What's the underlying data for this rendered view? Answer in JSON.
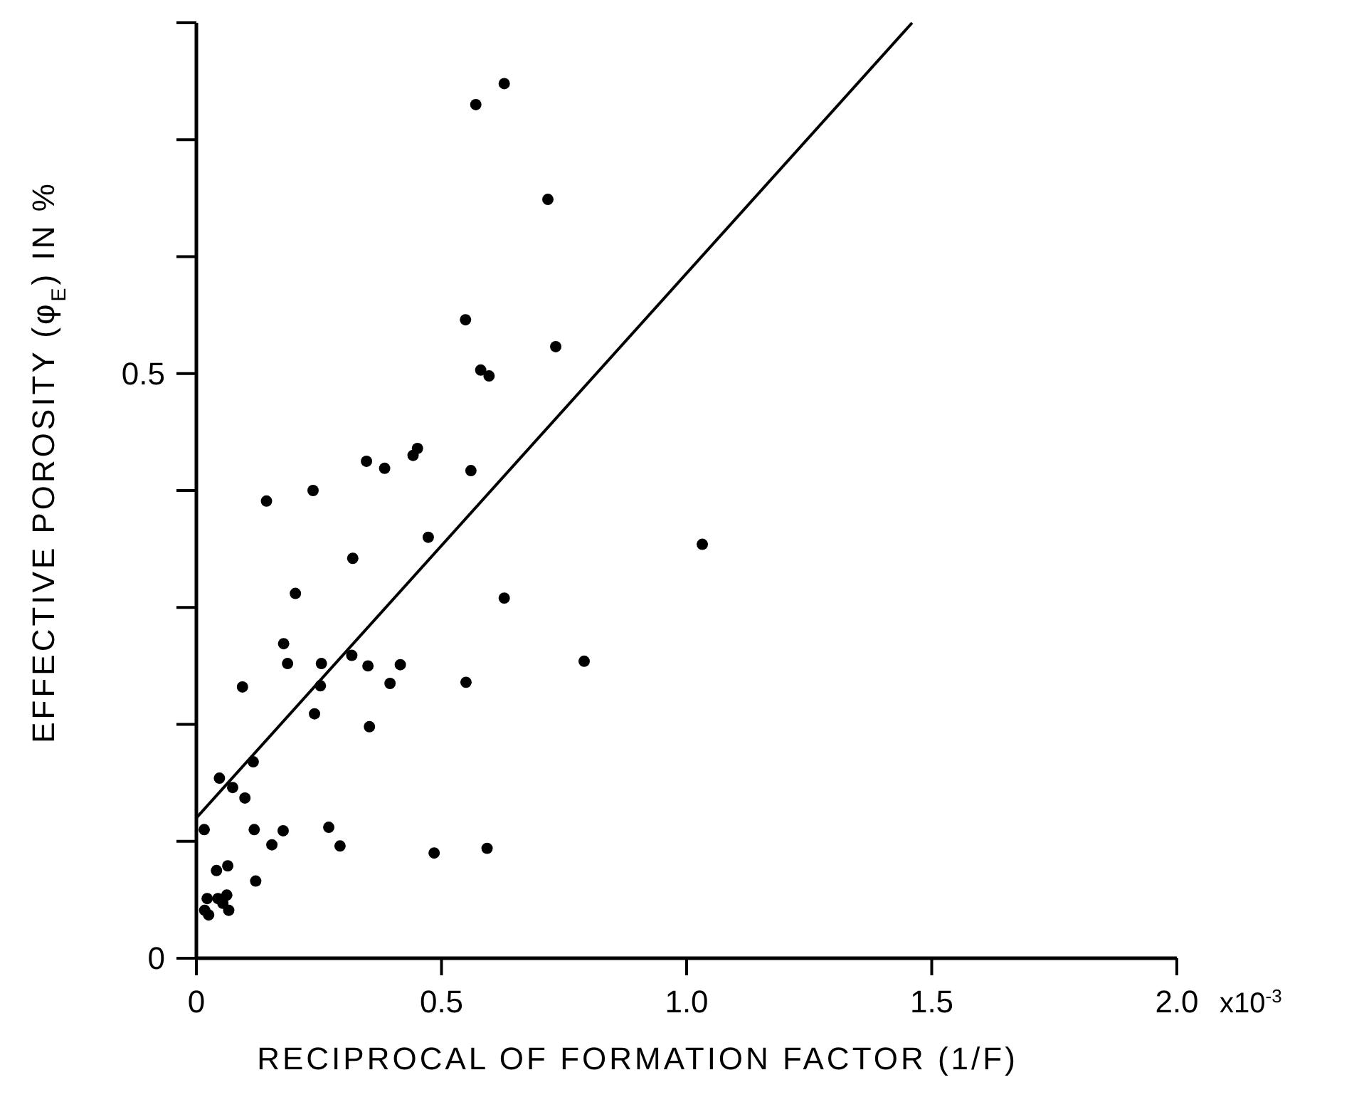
{
  "chart_data": {
    "type": "scatter",
    "xlabel": "RECIPROCAL OF FORMATION FACTOR (1/F)",
    "ylabel": "EFFECTIVE POROSITY (φ$_{E}$) IN %",
    "xlim": [
      0,
      2.0
    ],
    "ylim": [
      0,
      0.8
    ],
    "xticks": [
      0,
      0.5,
      {
        "value": 1,
        "label": "1.0"
      },
      1.5,
      {
        "value": 2,
        "label": "2.0"
      }
    ],
    "yticks": [
      0,
      {
        "value": 0.1,
        "label": null
      },
      {
        "value": 0.2,
        "label": null
      },
      {
        "value": 0.3,
        "label": null
      },
      {
        "value": 0.4,
        "label": null
      },
      0.5,
      {
        "value": 0.6,
        "label": null
      },
      {
        "value": 0.7,
        "label": null
      },
      {
        "value": 0.8,
        "label": null
      }
    ],
    "annotations": [
      "x10$^{-3}$"
    ],
    "grid": false,
    "marker": "circle",
    "series": [
      {
        "color": "#000000",
        "x": [
          0.628,
          0.57,
          0.717,
          0.549,
          0.733,
          0.58,
          0.597,
          0.451,
          0.442,
          0.347,
          0.384,
          0.56,
          0.238,
          0.143,
          0.473,
          0.319,
          0.628,
          0.202,
          0.178,
          0.186,
          0.255,
          0.317,
          0.35,
          0.416,
          0.791,
          0.094,
          0.253,
          0.395,
          0.55,
          0.241,
          0.353,
          0.116,
          0.047,
          0.074,
          0.099,
          0.016,
          0.118,
          0.177,
          0.27,
          0.154,
          0.293,
          0.485,
          0.593,
          0.041,
          0.064,
          0.121,
          0.022,
          0.044,
          0.062,
          0.017,
          0.025,
          0.066,
          0.054,
          1.032
        ],
        "values": [
          0.748,
          0.73,
          0.649,
          0.546,
          0.523,
          0.503,
          0.498,
          0.436,
          0.43,
          0.425,
          0.419,
          0.417,
          0.4,
          0.391,
          0.36,
          0.342,
          0.308,
          0.312,
          0.269,
          0.252,
          0.252,
          0.259,
          0.25,
          0.251,
          0.254,
          0.232,
          0.233,
          0.235,
          0.236,
          0.209,
          0.198,
          0.168,
          0.154,
          0.146,
          0.137,
          0.11,
          0.11,
          0.109,
          0.112,
          0.097,
          0.096,
          0.09,
          0.094,
          0.075,
          0.079,
          0.066,
          0.051,
          0.051,
          0.054,
          0.041,
          0.037,
          0.041,
          0.047,
          0.354
        ]
      },
      {
        "type": "line",
        "color": "#000000",
        "line_style": "solid",
        "marker": "none",
        "x": [
          0,
          1.46
        ],
        "values": [
          0.12,
          0.8
        ]
      }
    ]
  }
}
